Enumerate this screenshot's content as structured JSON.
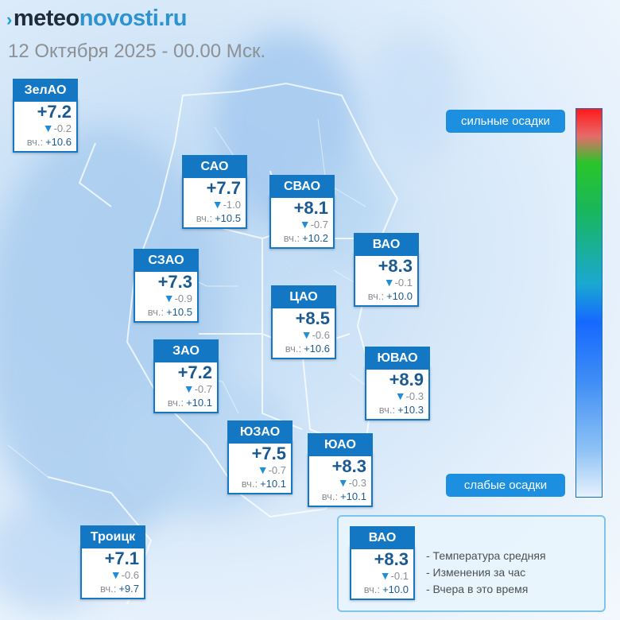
{
  "header": {
    "logo_mark": "›",
    "logo_part1": "meteo",
    "logo_part2": "novosti.ru",
    "datetime": "12 Октября 2025 - 00.00 Мск."
  },
  "cards": [
    {
      "id": "zelao",
      "name": "ЗелАО",
      "temp": "+7.2",
      "change": "-0.2",
      "yest_label": "вч.:",
      "yest": "+10.6"
    },
    {
      "id": "sao",
      "name": "САО",
      "temp": "+7.7",
      "change": "-1.0",
      "yest_label": "вч.:",
      "yest": "+10.5"
    },
    {
      "id": "svao",
      "name": "СВАО",
      "temp": "+8.1",
      "change": "-0.7",
      "yest_label": "вч.:",
      "yest": "+10.2"
    },
    {
      "id": "vao",
      "name": "ВАО",
      "temp": "+8.3",
      "change": "-0.1",
      "yest_label": "вч.:",
      "yest": "+10.0"
    },
    {
      "id": "szao",
      "name": "СЗАО",
      "temp": "+7.3",
      "change": "-0.9",
      "yest_label": "вч.:",
      "yest": "+10.5"
    },
    {
      "id": "cao",
      "name": "ЦАО",
      "temp": "+8.5",
      "change": "-0.6",
      "yest_label": "вч.:",
      "yest": "+10.6"
    },
    {
      "id": "zao",
      "name": "ЗАО",
      "temp": "+7.2",
      "change": "-0.7",
      "yest_label": "вч.:",
      "yest": "+10.1"
    },
    {
      "id": "yuvao",
      "name": "ЮВАО",
      "temp": "+8.9",
      "change": "-0.3",
      "yest_label": "вч.:",
      "yest": "+10.3"
    },
    {
      "id": "yuzao",
      "name": "ЮЗАО",
      "temp": "+7.5",
      "change": "-0.7",
      "yest_label": "вч.:",
      "yest": "+10.1"
    },
    {
      "id": "yuao",
      "name": "ЮАО",
      "temp": "+8.3",
      "change": "-0.3",
      "yest_label": "вч.:",
      "yest": "+10.1"
    },
    {
      "id": "troitsk",
      "name": "Троицк",
      "temp": "+7.1",
      "change": "-0.6",
      "yest_label": "вч.:",
      "yest": "+9.7"
    }
  ],
  "scale": {
    "top_label": "сильные осадки",
    "bottom_label": "слабые осадки"
  },
  "legend": {
    "sample": {
      "name": "ВАО",
      "temp": "+8.3",
      "change": "-0.1",
      "yest_label": "вч.:",
      "yest": "+10.0"
    },
    "items": [
      "- Температура средняя",
      "- Изменения за час",
      "- Вчера в это время"
    ]
  },
  "colors": {
    "card_header": "#1477c4",
    "temp_text": "#1a5a91",
    "down_arrow": "#1f8ed6",
    "scale_button": "#1c8fe0",
    "precip_strong": "#ff1a1a",
    "precip_weak": "#e6f1fd"
  }
}
